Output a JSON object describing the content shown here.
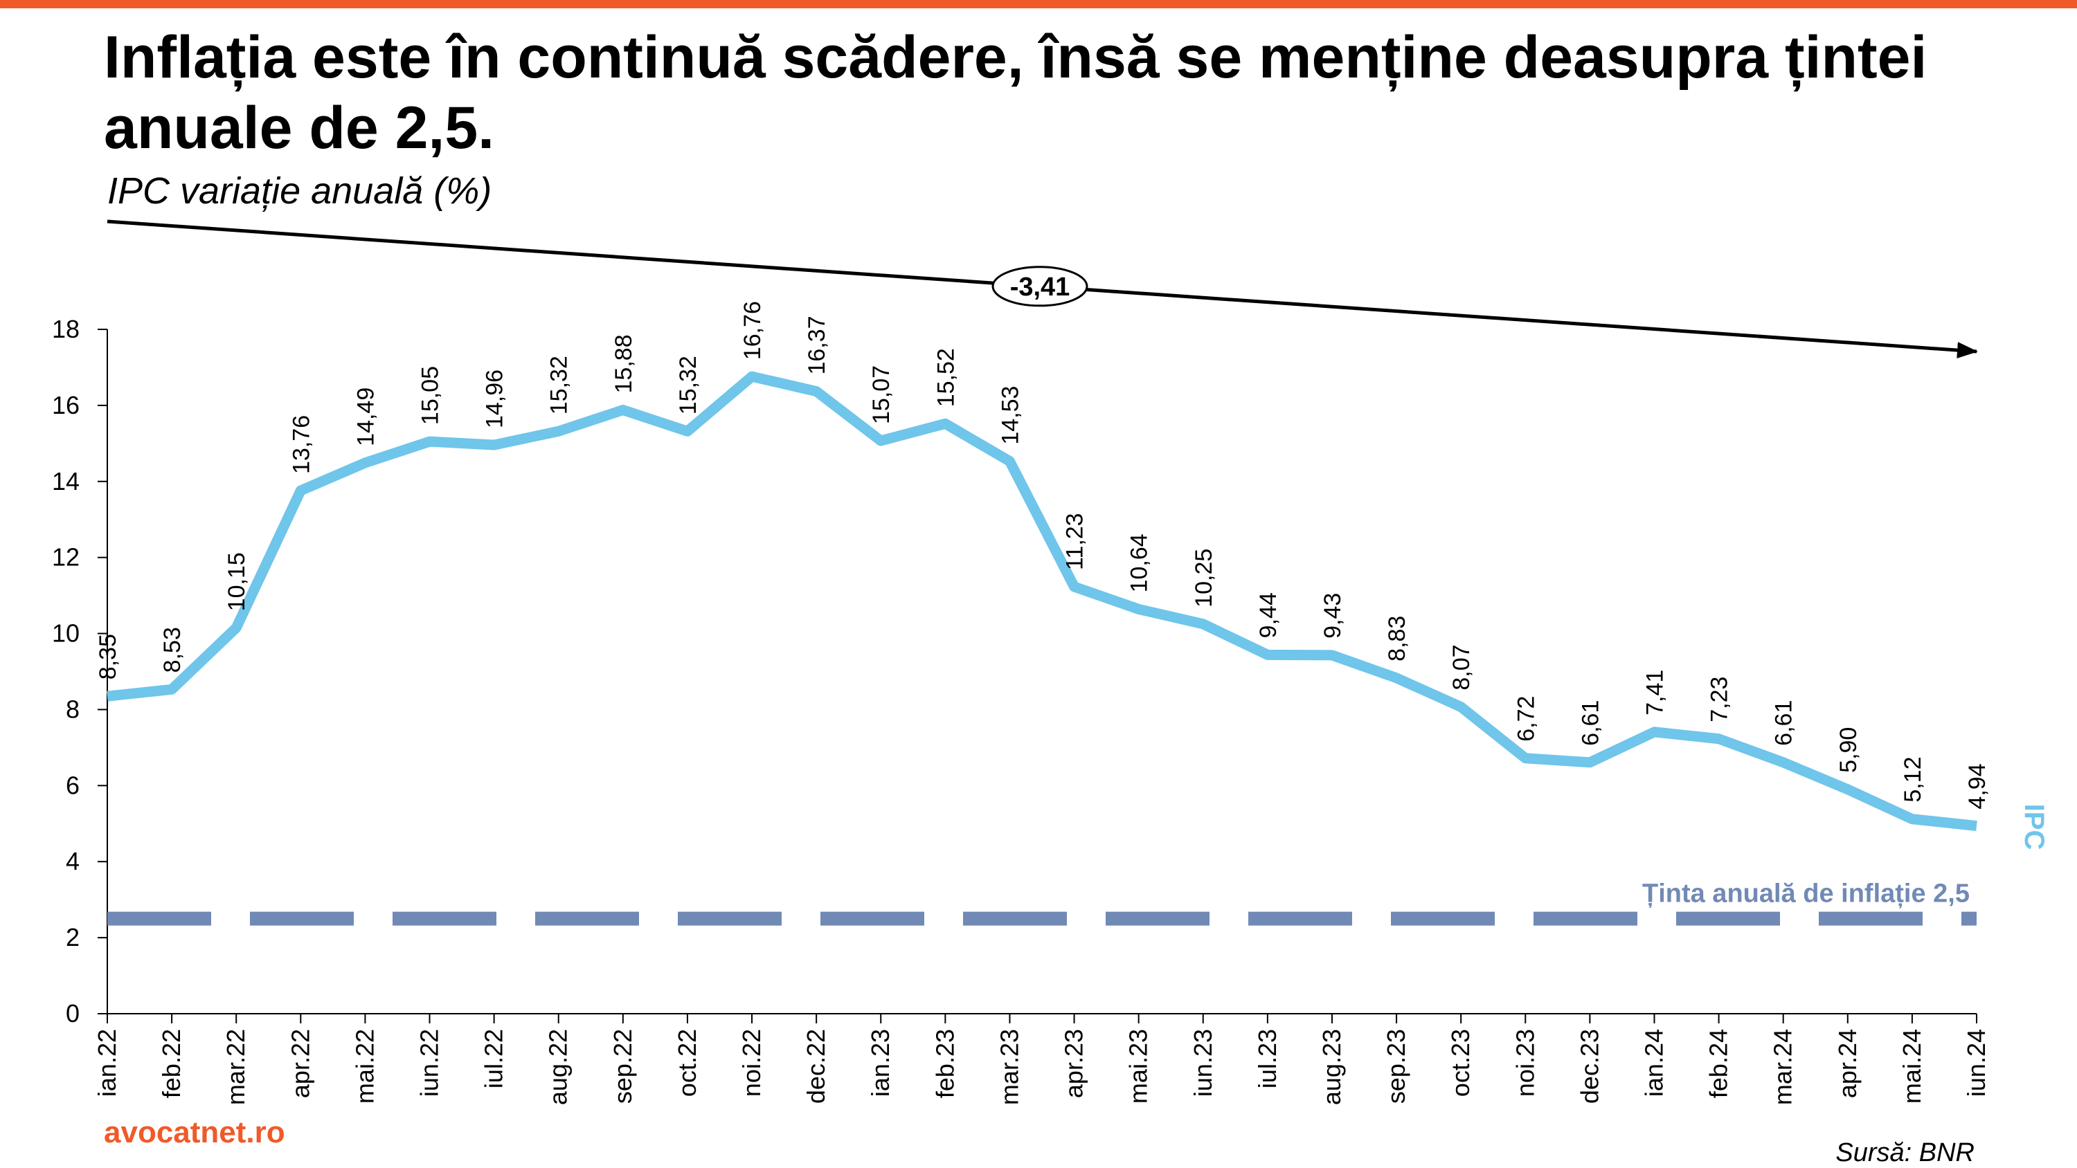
{
  "header": {
    "title": "Inflația este în continuă scădere, însă se menține deasupra țintei anuale de 2,5.",
    "subtitle": "IPC variație anuală (%)"
  },
  "footer": {
    "brand": "avocatnet.ro",
    "source": "Sursă: BNR"
  },
  "colors": {
    "accent": "#F05A28",
    "line": "#6FC5EA",
    "target": "#7189B5",
    "text": "#000000"
  },
  "chart_data": {
    "type": "line",
    "title": "Inflația este în continuă scădere, însă se menține deasupra țintei anuale de 2,5.",
    "subtitle": "IPC variație anuală (%)",
    "categories": [
      "ian.22",
      "feb.22",
      "mar.22",
      "apr.22",
      "mai.22",
      "iun.22",
      "iul.22",
      "aug.22",
      "sep.22",
      "oct.22",
      "noi.22",
      "dec.22",
      "ian.23",
      "feb.23",
      "mar.23",
      "apr.23",
      "mai.23",
      "iun.23",
      "iul.23",
      "aug.23",
      "sep.23",
      "oct.23",
      "noi.23",
      "dec.23",
      "ian.24",
      "feb.24",
      "mar.24",
      "apr.24",
      "mai.24",
      "iun.24"
    ],
    "series": [
      {
        "name": "IPC",
        "values": [
          8.35,
          8.53,
          10.15,
          13.76,
          14.49,
          15.05,
          14.96,
          15.32,
          15.88,
          15.32,
          16.76,
          16.37,
          15.07,
          15.52,
          14.53,
          11.23,
          10.64,
          10.25,
          9.44,
          9.43,
          8.83,
          8.07,
          6.72,
          6.61,
          7.41,
          7.23,
          6.61,
          5.9,
          5.12,
          4.94
        ],
        "labels": [
          "8,35",
          "8,53",
          "10,15",
          "13,76",
          "14,49",
          "15,05",
          "14,96",
          "15,32",
          "15,88",
          "15,32",
          "16,76",
          "16,37",
          "15,07",
          "15,52",
          "14,53",
          "11,23",
          "10,64",
          "10,25",
          "9,44",
          "9,43",
          "8,83",
          "8,07",
          "6,72",
          "6,61",
          "7,41",
          "7,23",
          "6,61",
          "5,90",
          "5,12",
          "4,94"
        ]
      }
    ],
    "ylim": [
      0,
      18
    ],
    "yticks": [
      0,
      2,
      4,
      6,
      8,
      10,
      12,
      14,
      16,
      18
    ],
    "grid": false,
    "target": {
      "value": 2.5,
      "label": "Ținta anuală de inflație 2,5",
      "style": "dashed"
    },
    "trend": {
      "label": "-3,41",
      "direction": "down"
    },
    "legend": "series name at right end of line"
  }
}
